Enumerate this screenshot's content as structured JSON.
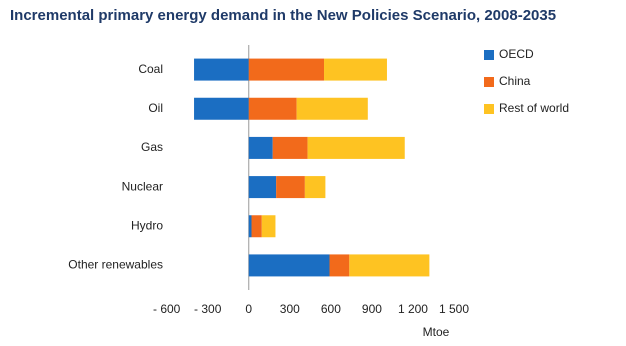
{
  "chart_data": {
    "type": "stacked-barh",
    "title": "Incremental primary energy demand in the New Policies Scenario, 2008-2035",
    "xlabel": "Mtoe",
    "categories": [
      "Coal",
      "Oil",
      "Gas",
      "Nuclear",
      "Hydro",
      "Other renewables"
    ],
    "series": [
      {
        "name": "OECD",
        "color": "#1b6ec2",
        "values": [
          -400,
          -400,
          175,
          200,
          20,
          590
        ]
      },
      {
        "name": "China",
        "color": "#f26a1b",
        "values": [
          550,
          350,
          255,
          210,
          75,
          145
        ]
      },
      {
        "name": "Rest of world",
        "color": "#fec322",
        "values": [
          460,
          520,
          710,
          150,
          100,
          585
        ]
      }
    ],
    "xlim": [
      -700,
      1500
    ],
    "xticks": [
      {
        "value": -600,
        "label": "- 600"
      },
      {
        "value": -300,
        "label": "- 300"
      },
      0,
      300,
      600,
      900,
      {
        "value": 1200,
        "label": "1 200"
      },
      {
        "value": 1500,
        "label": "1 500"
      }
    ],
    "legend": "upper right",
    "grid": false
  }
}
